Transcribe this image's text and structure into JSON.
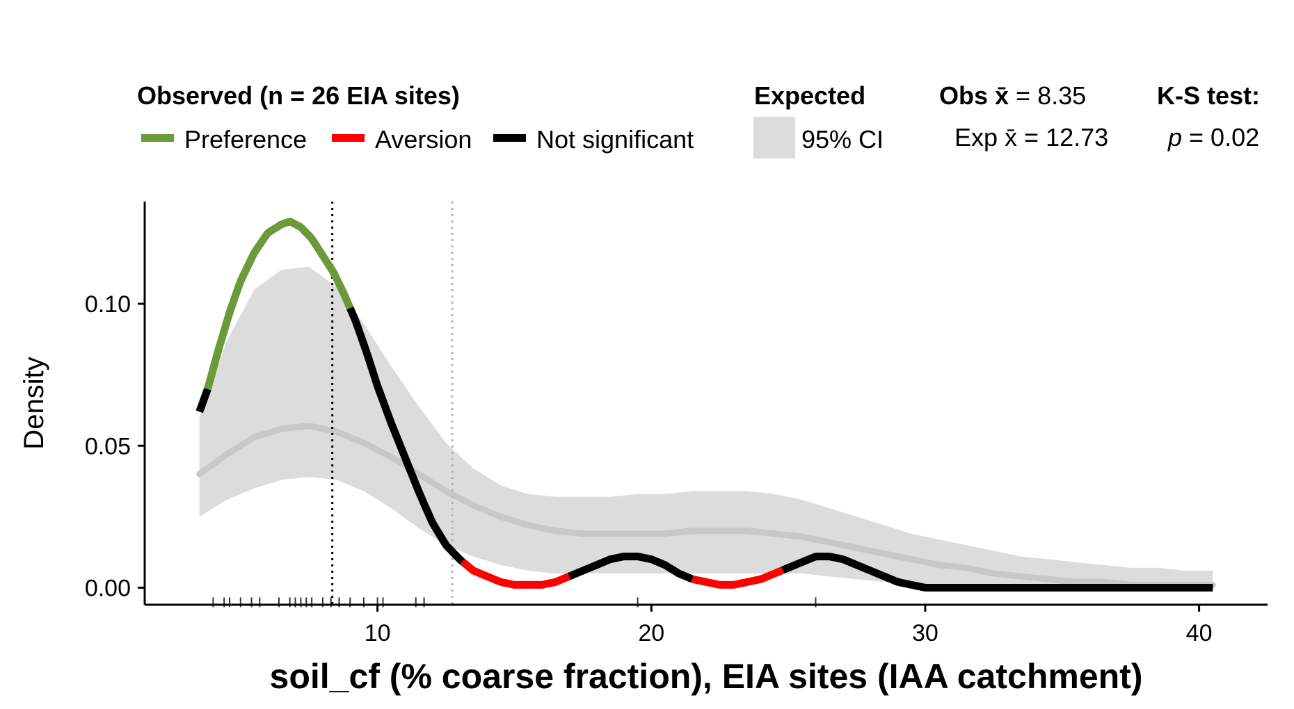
{
  "legend": {
    "observed_title": "Observed (n = 26 EIA sites)",
    "preference": "Preference",
    "aversion": "Aversion",
    "not_significant": "Not significant",
    "expected_title": "Expected",
    "ci_label": "95% CI",
    "obs_mean_label": "Obs x̄ = 8.35",
    "obs_mean_prefix": "Obs ",
    "obs_mean_value": " = 8.35",
    "exp_mean_prefix": "Exp ",
    "exp_mean_value": " = 12.73",
    "ks_title": "K-S test:",
    "ks_p_symbol": "p",
    "ks_p_value": " = 0.02"
  },
  "colors": {
    "preference": "#6a9a3a",
    "aversion": "#ff0000",
    "not_significant": "#000000",
    "ci_band": "#dcdcdc",
    "expected_line": "#c8c8c8",
    "obs_mean_line": "#000000",
    "exp_mean_line": "#b4b4b4"
  },
  "chart_data": {
    "type": "line",
    "xlabel": "soil_cf (% coarse fraction), EIA sites (IAA catchment)",
    "ylabel": "Density",
    "xlim": [
      1.5,
      42.5
    ],
    "ylim": [
      -0.006,
      0.136
    ],
    "x_ticks": [
      10,
      20,
      30,
      40
    ],
    "y_ticks": [
      0.0,
      0.05,
      0.1
    ],
    "y_tick_labels": [
      "0.00",
      "0.05",
      "0.10"
    ],
    "obs_mean": 8.35,
    "exp_mean": 12.73,
    "observed_density": {
      "x": [
        3.5,
        3.8,
        4.2,
        4.6,
        5.0,
        5.5,
        6.0,
        6.5,
        6.8,
        7.2,
        7.6,
        8.0,
        8.4,
        8.8,
        9.2,
        9.6,
        10.0,
        10.5,
        11.0,
        11.5,
        12.0,
        12.5,
        13.0,
        13.5,
        14.0,
        14.5,
        15.0,
        15.5,
        16.0,
        16.5,
        17.0,
        17.5,
        18.0,
        18.5,
        19.0,
        19.5,
        20.0,
        20.5,
        21.0,
        21.5,
        22.0,
        22.5,
        23.0,
        23.5,
        24.0,
        24.5,
        25.0,
        25.5,
        26.0,
        26.5,
        27.0,
        27.5,
        28.0,
        28.5,
        29.0,
        29.5,
        30.0,
        30.5,
        32.0,
        34.0,
        36.0,
        38.0,
        40.5
      ],
      "y": [
        0.062,
        0.07,
        0.084,
        0.097,
        0.108,
        0.118,
        0.125,
        0.128,
        0.129,
        0.127,
        0.123,
        0.117,
        0.111,
        0.103,
        0.094,
        0.083,
        0.071,
        0.058,
        0.046,
        0.034,
        0.023,
        0.015,
        0.01,
        0.006,
        0.004,
        0.002,
        0.001,
        0.001,
        0.001,
        0.002,
        0.004,
        0.006,
        0.008,
        0.01,
        0.011,
        0.011,
        0.01,
        0.008,
        0.005,
        0.003,
        0.002,
        0.001,
        0.001,
        0.002,
        0.003,
        0.005,
        0.007,
        0.009,
        0.011,
        0.011,
        0.01,
        0.008,
        0.006,
        0.004,
        0.002,
        0.001,
        0.0,
        0.0,
        0.0,
        0.0,
        0.0,
        0.0,
        0.0
      ],
      "segments": [
        {
          "class": "not_significant",
          "x": [
            3.5,
            3.8
          ]
        },
        {
          "class": "preference",
          "x": [
            3.8,
            9.0
          ]
        },
        {
          "class": "not_significant",
          "x": [
            9.0,
            13.1
          ]
        },
        {
          "class": "aversion",
          "x": [
            13.1,
            17.0
          ]
        },
        {
          "class": "not_significant",
          "x": [
            17.0,
            21.5
          ]
        },
        {
          "class": "aversion",
          "x": [
            21.5,
            24.8
          ]
        },
        {
          "class": "not_significant",
          "x": [
            24.8,
            40.5
          ]
        }
      ]
    },
    "expected_density": {
      "x": [
        3.5,
        4.5,
        5.5,
        6.5,
        7.5,
        8.5,
        9.5,
        10.5,
        11.5,
        12.5,
        13.5,
        14.5,
        15.5,
        16.5,
        17.5,
        18.5,
        19.5,
        20.5,
        21.5,
        22.5,
        23.5,
        24.5,
        25.5,
        26.5,
        27.5,
        28.5,
        29.5,
        30.5,
        31.5,
        32.5,
        33.5,
        34.5,
        35.5,
        36.5,
        37.5,
        38.5,
        39.5,
        40.5
      ],
      "y": [
        0.04,
        0.047,
        0.053,
        0.056,
        0.057,
        0.055,
        0.051,
        0.046,
        0.04,
        0.034,
        0.029,
        0.025,
        0.022,
        0.02,
        0.019,
        0.019,
        0.019,
        0.019,
        0.02,
        0.02,
        0.02,
        0.019,
        0.018,
        0.016,
        0.014,
        0.012,
        0.01,
        0.008,
        0.007,
        0.005,
        0.004,
        0.003,
        0.002,
        0.002,
        0.001,
        0.001,
        0.001,
        0.001
      ],
      "ci_lower": [
        0.025,
        0.031,
        0.035,
        0.038,
        0.039,
        0.038,
        0.034,
        0.028,
        0.021,
        0.015,
        0.011,
        0.008,
        0.006,
        0.005,
        0.005,
        0.005,
        0.005,
        0.005,
        0.005,
        0.005,
        0.005,
        0.005,
        0.005,
        0.004,
        0.003,
        0.002,
        0.001,
        0.001,
        0.001,
        0.0,
        0.0,
        0.0,
        0.0,
        0.0,
        0.0,
        0.0,
        0.0,
        0.0
      ],
      "ci_upper": [
        0.06,
        0.087,
        0.105,
        0.112,
        0.113,
        0.106,
        0.093,
        0.078,
        0.064,
        0.051,
        0.042,
        0.036,
        0.033,
        0.032,
        0.032,
        0.032,
        0.033,
        0.033,
        0.034,
        0.034,
        0.034,
        0.033,
        0.031,
        0.028,
        0.025,
        0.022,
        0.019,
        0.017,
        0.015,
        0.013,
        0.011,
        0.01,
        0.009,
        0.008,
        0.007,
        0.007,
        0.006,
        0.006
      ]
    },
    "rug": [
      4.0,
      4.4,
      4.6,
      5.0,
      5.4,
      5.7,
      6.4,
      6.8,
      7.0,
      7.2,
      7.4,
      7.6,
      8.0,
      8.3,
      8.6,
      9.0,
      9.5,
      10.0,
      10.2,
      11.4,
      11.7,
      19.5,
      26.0
    ]
  }
}
